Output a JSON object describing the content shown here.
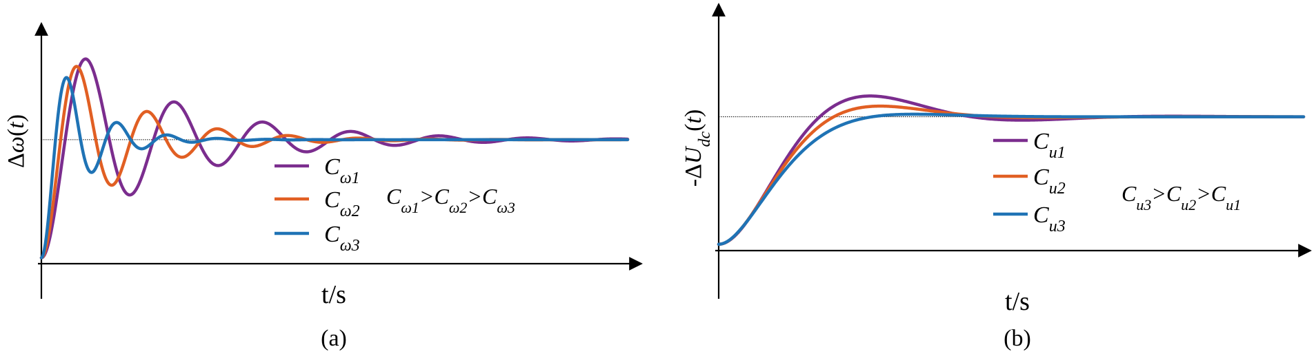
{
  "chart_data": [
    {
      "type": "line",
      "panel_label": "(a)",
      "xlabel": "t/s",
      "ylabel": "Δω(t)",
      "relation": "Cω1>Cω2>Cω3",
      "legend_placement": "center",
      "grid": false,
      "x_range": [
        0,
        10
      ],
      "y_range": [
        -0.05,
        1.95
      ],
      "reference_level": 1.0,
      "series": [
        {
          "name": "Cω1",
          "color": "#7b2d8e",
          "zeta": 0.12,
          "wn": 4.2
        },
        {
          "name": "Cω2",
          "color": "#e15f23",
          "zeta": 0.15,
          "wn": 5.3
        },
        {
          "name": "Cω3",
          "color": "#1f73b5",
          "zeta": 0.2,
          "wn": 7.5
        }
      ]
    },
    {
      "type": "line",
      "panel_label": "(b)",
      "xlabel": "t/s",
      "ylabel": "-ΔUdc(t)",
      "relation": "Cu3>Cu2>Cu1",
      "legend_placement": "center",
      "grid": false,
      "x_range": [
        0,
        10
      ],
      "y_range": [
        -0.05,
        1.7
      ],
      "reference_level": 1.0,
      "series": [
        {
          "name": "Cu1",
          "color": "#7b2d8e",
          "zeta": 0.5,
          "wn": 1.4
        },
        {
          "name": "Cu2",
          "color": "#e15f23",
          "zeta": 0.62,
          "wn": 1.45
        },
        {
          "name": "Cu3",
          "color": "#1f73b5",
          "zeta": 0.78,
          "wn": 1.5
        }
      ]
    }
  ]
}
